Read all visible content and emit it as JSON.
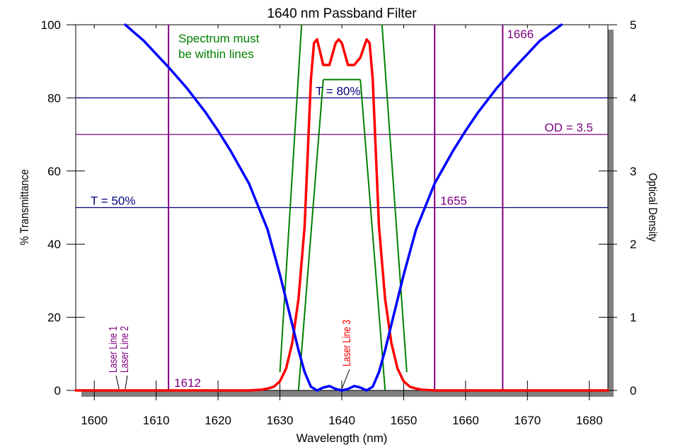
{
  "chart_data": {
    "type": "line",
    "title": "1640 nm Passband Filter",
    "xlabel": "Wavelength (nm)",
    "ylabel": "% Transmittance",
    "y2label": "Optical Density",
    "xlim": [
      1597,
      1683
    ],
    "ylim": [
      0,
      100
    ],
    "y2lim": [
      0,
      5
    ],
    "x_ticks": [
      1600,
      1610,
      1620,
      1630,
      1640,
      1650,
      1660,
      1670,
      1680
    ],
    "y_ticks": [
      0,
      20,
      40,
      60,
      80,
      100
    ],
    "y2_ticks": [
      0,
      1,
      2,
      3,
      4,
      5
    ],
    "grid": false,
    "colors": {
      "transmittance": "#ff0000",
      "optical_density": "#0000ff",
      "spec_lines": "#008000",
      "markers": "#800080",
      "threshold": "#000080"
    },
    "series": [
      {
        "name": "% Transmittance",
        "axis": "left",
        "x": [
          1597,
          1620,
          1625,
          1627,
          1628,
          1629,
          1630,
          1631,
          1632,
          1633,
          1634,
          1634.5,
          1635,
          1635.5,
          1636,
          1637,
          1638,
          1638.5,
          1639,
          1639.5,
          1640,
          1640.5,
          1641,
          1641.5,
          1642,
          1643,
          1644,
          1644.5,
          1645,
          1645.5,
          1646,
          1647,
          1648,
          1649,
          1650,
          1651,
          1652,
          1653,
          1655,
          1660,
          1683
        ],
        "y": [
          0,
          0,
          0,
          0.2,
          0.5,
          1,
          2.5,
          6,
          13,
          25,
          45,
          65,
          85,
          95,
          96,
          89,
          89,
          92,
          95,
          96,
          95,
          92,
          89,
          89,
          89,
          91,
          96,
          95,
          85,
          65,
          45,
          25,
          13,
          6,
          2.5,
          1,
          0.5,
          0.2,
          0,
          0,
          0
        ]
      },
      {
        "name": "Optical Density",
        "axis": "right",
        "x": [
          1605,
          1608,
          1610,
          1612,
          1615,
          1618,
          1620,
          1622,
          1625,
          1628,
          1630,
          1632,
          1633,
          1634,
          1635,
          1636,
          1637,
          1638,
          1639,
          1640,
          1641,
          1642,
          1643,
          1644,
          1645,
          1646,
          1647,
          1648,
          1650,
          1652,
          1655,
          1658,
          1660,
          1662,
          1665,
          1668,
          1670,
          1672,
          1675.5
        ],
        "y": [
          5,
          4.78,
          4.6,
          4.42,
          4.13,
          3.8,
          3.55,
          3.28,
          2.83,
          2.2,
          1.58,
          0.9,
          0.55,
          0.25,
          0.05,
          0,
          0.04,
          0.06,
          0.02,
          0,
          0.02,
          0.06,
          0.04,
          0,
          0.05,
          0.25,
          0.55,
          0.9,
          1.58,
          2.2,
          2.83,
          3.28,
          3.55,
          3.8,
          4.13,
          4.42,
          4.6,
          4.78,
          5
        ]
      }
    ],
    "spec_lines": [
      {
        "x": [
          1630,
          1633.5
        ],
        "y": [
          5,
          100
        ]
      },
      {
        "x": [
          1633,
          1637
        ],
        "y": [
          0,
          85
        ]
      },
      {
        "x": [
          1637,
          1643
        ],
        "y": [
          85,
          85
        ]
      },
      {
        "x": [
          1643,
          1647
        ],
        "y": [
          85,
          0
        ]
      },
      {
        "x": [
          1646.5,
          1650.5
        ],
        "y": [
          100,
          5
        ]
      }
    ],
    "vertical_lines": [
      {
        "x": 1612,
        "label": "1612"
      },
      {
        "x": 1655,
        "label": "1655"
      },
      {
        "x": 1666,
        "label": "1666"
      }
    ],
    "horizontal_lines": [
      {
        "y": 80,
        "label": "T = 80%",
        "kind": "threshold"
      },
      {
        "y": 70,
        "label": "OD = 3.5",
        "kind": "marker"
      },
      {
        "y": 50,
        "label": "T = 50%",
        "kind": "threshold"
      }
    ],
    "laser_lines": [
      {
        "x": 1604,
        "label": "Laser Line 1",
        "color": "#800080"
      },
      {
        "x": 1605,
        "label": "Laser Line 2",
        "color": "#800080"
      },
      {
        "x": 1640,
        "label": "Laser Line 3",
        "color": "#ff0000"
      }
    ],
    "annotations": [
      {
        "text_lines": [
          "Spectrum must",
          "be within lines"
        ],
        "color": "#008000"
      }
    ]
  }
}
